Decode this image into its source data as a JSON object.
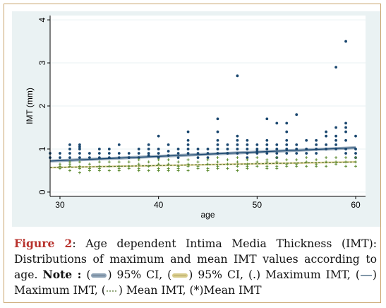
{
  "chart_data": {
    "type": "scatter",
    "xlabel": "age",
    "ylabel": "IMT (mm)",
    "xlim": [
      29,
      61
    ],
    "ylim": [
      -0.1,
      4.1
    ],
    "x_ticks": [
      30,
      40,
      50,
      60
    ],
    "y_ticks": [
      0,
      1,
      2,
      3,
      4
    ],
    "grid": "horizontal",
    "colors": {
      "max_points": "#1a476f",
      "mean_points": "#5b8a2f",
      "ci_max": "#8ea2b5",
      "ci_mean": "#d8cc8c",
      "fit_max": "#1a476f",
      "fit_mean": "#55752f",
      "panel_bg": "#eaf2f3",
      "grid": "#ffffff"
    },
    "fits": {
      "max": {
        "x": [
          29,
          60
        ],
        "y": [
          0.72,
          1.03
        ],
        "ci_halfwidth": 0.035
      },
      "mean": {
        "x": [
          29,
          60
        ],
        "y": [
          0.57,
          0.7
        ],
        "ci_halfwidth": 0.02
      }
    },
    "series": [
      {
        "marker": "dot",
        "x": [
          29,
          29,
          30,
          30,
          31,
          31,
          31,
          31,
          32,
          32,
          32,
          32,
          32,
          33,
          33,
          34,
          34,
          34,
          35,
          35,
          35,
          36,
          36,
          36,
          37,
          37,
          38,
          38,
          38,
          39,
          39,
          39,
          39,
          40,
          40,
          40,
          40,
          41,
          41,
          41,
          42,
          42,
          42,
          43,
          43,
          43,
          43,
          43,
          44,
          44,
          44,
          45,
          45,
          45,
          46,
          46,
          46,
          46,
          46,
          46,
          47,
          47,
          47,
          48,
          48,
          48,
          48,
          48,
          48,
          49,
          49,
          49,
          49,
          49,
          50,
          50,
          50,
          50,
          51,
          51,
          51,
          51,
          51,
          52,
          52,
          52,
          52,
          52,
          53,
          53,
          53,
          53,
          53,
          53,
          54,
          54,
          54,
          54,
          55,
          55,
          55,
          56,
          56,
          56,
          56,
          57,
          57,
          57,
          57,
          58,
          58,
          58,
          58,
          58,
          58,
          59,
          59,
          59,
          59,
          59,
          59,
          59,
          60,
          60,
          60,
          60
        ],
        "y": [
          0.9,
          0.8,
          0.9,
          0.8,
          1.1,
          1.0,
          0.9,
          0.8,
          1.1,
          1.05,
          1.0,
          0.9,
          0.8,
          0.9,
          0.8,
          1.0,
          0.9,
          0.8,
          1.0,
          0.9,
          0.8,
          1.1,
          0.9,
          0.8,
          0.9,
          0.8,
          1.0,
          0.9,
          0.8,
          1.1,
          1.0,
          0.9,
          0.85,
          1.3,
          1.0,
          0.9,
          0.8,
          1.1,
          0.95,
          0.85,
          1.0,
          0.9,
          0.8,
          1.4,
          1.2,
          1.1,
          1.0,
          0.9,
          1.0,
          0.9,
          0.8,
          1.0,
          0.9,
          0.8,
          1.7,
          1.4,
          1.2,
          1.1,
          1.0,
          0.9,
          1.1,
          1.0,
          0.9,
          2.7,
          1.3,
          1.2,
          1.1,
          1.0,
          0.9,
          1.2,
          1.1,
          1.0,
          0.9,
          0.8,
          1.1,
          1.0,
          0.95,
          0.9,
          1.7,
          1.2,
          1.1,
          1.0,
          0.9,
          1.6,
          1.1,
          1.0,
          0.9,
          0.8,
          1.6,
          1.4,
          1.2,
          1.1,
          1.0,
          0.9,
          1.8,
          1.1,
          1.0,
          0.9,
          1.2,
          1.0,
          0.9,
          1.2,
          1.1,
          1.0,
          0.9,
          1.4,
          1.3,
          1.1,
          1.0,
          2.9,
          1.5,
          1.3,
          1.2,
          1.1,
          1.0,
          3.5,
          1.6,
          1.5,
          1.4,
          1.2,
          1.0,
          0.9,
          1.3,
          1.0,
          0.9,
          0.8
        ]
      },
      {
        "marker": "cross",
        "x": [
          30,
          30,
          30,
          31,
          31,
          31,
          31,
          32,
          32,
          32,
          32,
          33,
          33,
          33,
          34,
          34,
          34,
          34,
          35,
          35,
          35,
          36,
          36,
          36,
          36,
          37,
          37,
          37,
          38,
          38,
          38,
          38,
          39,
          39,
          39,
          40,
          40,
          40,
          40,
          41,
          41,
          41,
          41,
          42,
          42,
          42,
          42,
          43,
          43,
          43,
          43,
          44,
          44,
          44,
          45,
          45,
          45,
          45,
          46,
          46,
          46,
          46,
          47,
          47,
          47,
          48,
          48,
          48,
          48,
          49,
          49,
          49,
          49,
          50,
          50,
          50,
          51,
          51,
          51,
          51,
          52,
          52,
          52,
          52,
          53,
          53,
          53,
          54,
          54,
          54,
          55,
          55,
          55,
          56,
          56,
          56,
          57,
          57,
          57,
          58,
          58,
          58,
          59,
          59,
          59,
          60,
          60,
          60
        ],
        "y": [
          0.65,
          0.55,
          0.6,
          0.7,
          0.6,
          0.5,
          0.65,
          0.7,
          0.6,
          0.55,
          0.45,
          0.65,
          0.55,
          0.5,
          0.7,
          0.6,
          0.5,
          0.55,
          0.7,
          0.6,
          0.5,
          0.7,
          0.6,
          0.55,
          0.5,
          0.7,
          0.6,
          0.55,
          0.75,
          0.65,
          0.55,
          0.5,
          0.7,
          0.6,
          0.5,
          0.75,
          0.65,
          0.55,
          0.5,
          0.75,
          0.65,
          0.55,
          0.5,
          0.7,
          0.6,
          0.55,
          0.5,
          0.75,
          0.65,
          0.6,
          0.5,
          0.7,
          0.6,
          0.55,
          0.75,
          0.65,
          0.55,
          0.5,
          0.8,
          0.7,
          0.6,
          0.55,
          0.75,
          0.65,
          0.55,
          0.8,
          0.7,
          0.6,
          0.5,
          0.75,
          0.65,
          0.6,
          0.55,
          0.8,
          0.7,
          0.6,
          0.75,
          0.7,
          0.6,
          0.55,
          0.8,
          0.7,
          0.6,
          0.55,
          0.75,
          0.65,
          0.6,
          0.75,
          0.65,
          0.6,
          0.8,
          0.7,
          0.6,
          0.75,
          0.65,
          0.6,
          0.8,
          0.7,
          0.6,
          0.8,
          0.7,
          0.65,
          0.8,
          0.7,
          0.6,
          0.8,
          0.7,
          0.6
        ]
      }
    ]
  },
  "caption": {
    "label": "Figure 2",
    "sep": ":",
    "text": "Age dependent Intima Media Thickness (IMT): Distributions of maximum and mean IMT values according to age.",
    "note_label": "Note :",
    "open": "(",
    "item1": ") 95% CI, (",
    "item2": ") 95% CI, (.) Maximum IMT, (",
    "item3": ") Maximum IMT, (",
    "item4": ") Mean IMT, (",
    "mean_marker": "*",
    "item5": ")Mean IMT"
  }
}
